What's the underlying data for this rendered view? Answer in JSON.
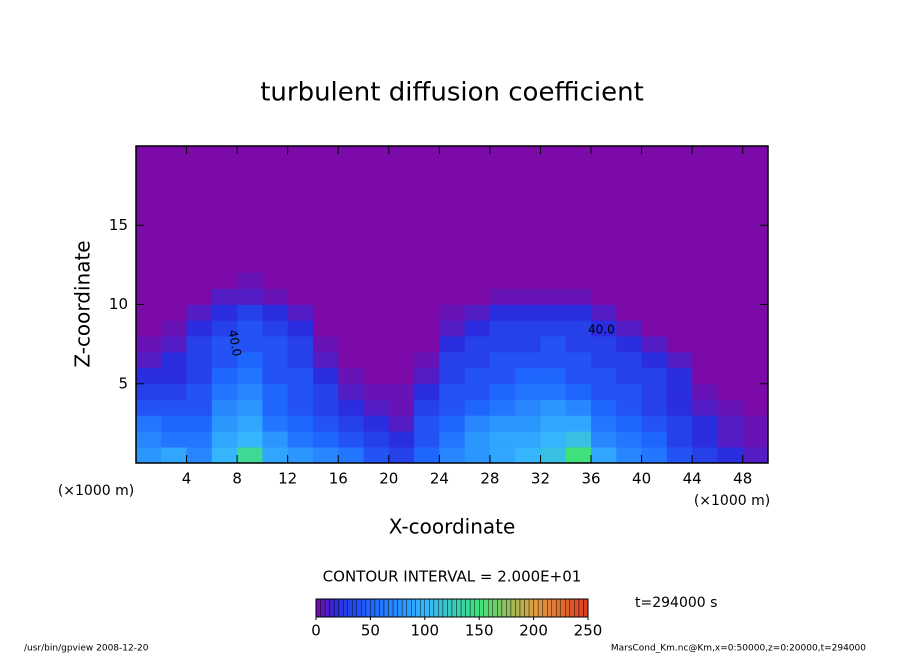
{
  "chart_data": {
    "type": "heatmap",
    "title": "turbulent diffusion coefficient",
    "x_label": "X-coordinate",
    "y_label": "Z-coordinate",
    "x_unit": "(×1000 m)",
    "y_unit": "(×1000 m)",
    "xlim": [
      0,
      50
    ],
    "ylim": [
      0,
      20
    ],
    "xticks": [
      4,
      8,
      12,
      16,
      20,
      24,
      28,
      32,
      36,
      40,
      44,
      48
    ],
    "yticks": [
      5,
      10,
      15
    ],
    "x_edges": [
      0,
      2,
      4,
      6,
      8,
      10,
      12,
      14,
      16,
      18,
      20,
      22,
      24,
      26,
      28,
      30,
      32,
      34,
      36,
      38,
      40,
      42,
      44,
      46,
      48,
      50
    ],
    "y_edges": [
      0,
      1,
      2,
      3,
      4,
      5,
      6,
      7,
      8,
      9,
      10,
      11,
      12
    ],
    "z": [
      [
        80,
        90,
        70,
        100,
        140,
        90,
        80,
        70,
        60,
        40,
        30,
        50,
        70,
        80,
        90,
        100,
        110,
        150,
        90,
        70,
        60,
        40,
        30,
        20,
        10
      ],
      [
        70,
        60,
        60,
        90,
        100,
        80,
        60,
        50,
        40,
        30,
        20,
        40,
        60,
        80,
        90,
        90,
        100,
        110,
        70,
        60,
        50,
        30,
        20,
        10,
        5
      ],
      [
        60,
        50,
        50,
        80,
        90,
        60,
        50,
        40,
        30,
        20,
        10,
        40,
        50,
        70,
        80,
        80,
        90,
        90,
        60,
        50,
        40,
        30,
        20,
        10,
        5
      ],
      [
        40,
        40,
        40,
        70,
        80,
        50,
        40,
        30,
        20,
        10,
        5,
        30,
        40,
        50,
        60,
        70,
        80,
        70,
        50,
        40,
        30,
        20,
        10,
        5,
        0
      ],
      [
        30,
        30,
        40,
        60,
        70,
        50,
        40,
        30,
        10,
        5,
        5,
        20,
        40,
        40,
        50,
        60,
        60,
        50,
        40,
        40,
        30,
        20,
        5,
        0,
        0
      ],
      [
        20,
        20,
        30,
        50,
        60,
        40,
        40,
        20,
        5,
        0,
        0,
        10,
        30,
        40,
        40,
        50,
        50,
        40,
        40,
        30,
        30,
        20,
        0,
        0,
        0
      ],
      [
        10,
        20,
        30,
        40,
        50,
        40,
        30,
        10,
        0,
        0,
        0,
        5,
        30,
        30,
        40,
        40,
        40,
        40,
        30,
        30,
        20,
        10,
        0,
        0,
        0
      ],
      [
        5,
        10,
        30,
        40,
        40,
        40,
        30,
        5,
        0,
        0,
        0,
        0,
        20,
        30,
        30,
        30,
        40,
        30,
        30,
        20,
        10,
        0,
        0,
        0,
        0
      ],
      [
        0,
        5,
        20,
        30,
        40,
        30,
        20,
        0,
        0,
        0,
        0,
        0,
        10,
        20,
        30,
        30,
        30,
        30,
        20,
        10,
        0,
        0,
        0,
        0,
        0
      ],
      [
        0,
        0,
        10,
        20,
        30,
        20,
        10,
        0,
        0,
        0,
        0,
        0,
        5,
        10,
        20,
        20,
        20,
        20,
        10,
        0,
        0,
        0,
        0,
        0,
        0
      ],
      [
        0,
        0,
        0,
        10,
        10,
        5,
        0,
        0,
        0,
        0,
        0,
        0,
        0,
        0,
        5,
        5,
        5,
        5,
        0,
        0,
        0,
        0,
        0,
        0,
        0
      ],
      [
        0,
        0,
        0,
        0,
        5,
        0,
        0,
        0,
        0,
        0,
        0,
        0,
        0,
        0,
        0,
        0,
        0,
        0,
        0,
        0,
        0,
        0,
        0,
        0,
        0
      ]
    ],
    "background_color": "#7b0aa8",
    "color_levels": [
      0,
      20,
      50,
      100,
      150,
      200,
      250
    ],
    "colors": [
      "#7b0aa8",
      "#2a2ee0",
      "#1f66ff",
      "#35b6ff",
      "#3fe27a",
      "#e0a040",
      "#e03a20"
    ],
    "clim": [
      0,
      250
    ],
    "colorbar_ticks": [
      0,
      50,
      100,
      150,
      200,
      250
    ],
    "contour_labels": [
      "40.0",
      "40.0"
    ],
    "contour_interval": "CONTOUR INTERVAL = 2.000E+01",
    "time_label": "t=294000 s",
    "footer_left": "/usr/bin/gpview  2008-12-20",
    "footer_right": "MarsCond_Km.nc@Km,x=0:50000,z=0:20000,t=294000"
  }
}
